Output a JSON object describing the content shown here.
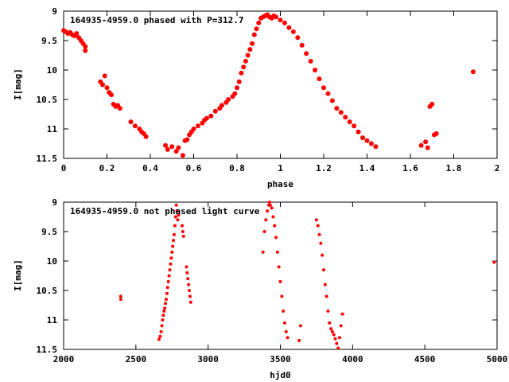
{
  "chart_data": [
    {
      "type": "scatter",
      "title": "164935-4959.0 phased with P=312.7",
      "xlabel": "phase",
      "ylabel": "I[mag]",
      "xlim": [
        0,
        2
      ],
      "ylim": [
        9,
        11.5
      ],
      "y_inverted": true,
      "grid": false,
      "xticks": [
        "0",
        "0.2",
        "0.4",
        "0.6",
        "0.8",
        "1",
        "1.2",
        "1.4",
        "1.6",
        "1.8",
        "2"
      ],
      "yticks": [
        "9",
        "9.5",
        "10",
        "10.5",
        "11",
        "11.5"
      ],
      "marker_color": "#ff0000",
      "points": [
        [
          0.0,
          9.33
        ],
        [
          0.01,
          9.35
        ],
        [
          0.02,
          9.38
        ],
        [
          0.03,
          9.36
        ],
        [
          0.04,
          9.4
        ],
        [
          0.05,
          9.42
        ],
        [
          0.06,
          9.38
        ],
        [
          0.07,
          9.45
        ],
        [
          0.08,
          9.5
        ],
        [
          0.09,
          9.55
        ],
        [
          0.1,
          9.6
        ],
        [
          0.1,
          9.67
        ],
        [
          0.17,
          10.2
        ],
        [
          0.18,
          10.25
        ],
        [
          0.19,
          10.1
        ],
        [
          0.2,
          10.3
        ],
        [
          0.21,
          10.38
        ],
        [
          0.22,
          10.42
        ],
        [
          0.23,
          10.58
        ],
        [
          0.24,
          10.62
        ],
        [
          0.25,
          10.6
        ],
        [
          0.26,
          10.65
        ],
        [
          0.31,
          10.88
        ],
        [
          0.33,
          10.95
        ],
        [
          0.35,
          11.0
        ],
        [
          0.36,
          11.05
        ],
        [
          0.37,
          11.08
        ],
        [
          0.38,
          11.13
        ],
        [
          0.47,
          11.28
        ],
        [
          0.48,
          11.35
        ],
        [
          0.5,
          11.3
        ],
        [
          0.52,
          11.38
        ],
        [
          0.53,
          11.32
        ],
        [
          0.55,
          11.45
        ],
        [
          0.56,
          11.2
        ],
        [
          0.57,
          11.18
        ],
        [
          0.58,
          11.1
        ],
        [
          0.59,
          11.05
        ],
        [
          0.6,
          11.0
        ],
        [
          0.62,
          10.95
        ],
        [
          0.64,
          10.9
        ],
        [
          0.65,
          10.85
        ],
        [
          0.66,
          10.82
        ],
        [
          0.68,
          10.78
        ],
        [
          0.7,
          10.7
        ],
        [
          0.72,
          10.65
        ],
        [
          0.73,
          10.6
        ],
        [
          0.75,
          10.55
        ],
        [
          0.76,
          10.5
        ],
        [
          0.78,
          10.45
        ],
        [
          0.79,
          10.4
        ],
        [
          0.8,
          10.3
        ],
        [
          0.81,
          10.2
        ],
        [
          0.82,
          10.05
        ],
        [
          0.83,
          9.95
        ],
        [
          0.84,
          9.85
        ],
        [
          0.85,
          9.75
        ],
        [
          0.86,
          9.65
        ],
        [
          0.87,
          9.55
        ],
        [
          0.88,
          9.4
        ],
        [
          0.89,
          9.3
        ],
        [
          0.9,
          9.2
        ],
        [
          0.91,
          9.12
        ],
        [
          0.92,
          9.1
        ],
        [
          0.93,
          9.08
        ],
        [
          0.94,
          9.06
        ],
        [
          0.95,
          9.1
        ],
        [
          0.96,
          9.12
        ],
        [
          0.97,
          9.08
        ],
        [
          0.98,
          9.1
        ],
        [
          1.0,
          9.15
        ],
        [
          1.02,
          9.2
        ],
        [
          1.04,
          9.28
        ],
        [
          1.06,
          9.35
        ],
        [
          1.08,
          9.45
        ],
        [
          1.1,
          9.58
        ],
        [
          1.12,
          9.72
        ],
        [
          1.14,
          9.85
        ],
        [
          1.16,
          10.0
        ],
        [
          1.18,
          10.15
        ],
        [
          1.2,
          10.3
        ],
        [
          1.22,
          10.4
        ],
        [
          1.24,
          10.52
        ],
        [
          1.26,
          10.65
        ],
        [
          1.28,
          10.72
        ],
        [
          1.3,
          10.8
        ],
        [
          1.32,
          10.88
        ],
        [
          1.34,
          10.95
        ],
        [
          1.36,
          11.05
        ],
        [
          1.38,
          11.15
        ],
        [
          1.4,
          11.2
        ],
        [
          1.42,
          11.25
        ],
        [
          1.44,
          11.3
        ],
        [
          1.65,
          11.28
        ],
        [
          1.67,
          11.22
        ],
        [
          1.68,
          11.32
        ],
        [
          1.69,
          10.62
        ],
        [
          1.7,
          10.58
        ],
        [
          1.71,
          11.1
        ],
        [
          1.72,
          11.08
        ],
        [
          1.89,
          10.03
        ]
      ]
    },
    {
      "type": "scatter",
      "title": "164935-4959.0 not phased light curve",
      "xlabel": "hjd0",
      "ylabel": "I[mag]",
      "xlim": [
        2000,
        5000
      ],
      "ylim": [
        9,
        11.5
      ],
      "y_inverted": true,
      "grid": false,
      "xticks": [
        "2000",
        "2500",
        "3000",
        "3500",
        "4000",
        "4500",
        "5000"
      ],
      "yticks": [
        "9",
        "9.5",
        "10",
        "10.5",
        "11",
        "11.5"
      ],
      "marker_color": "#ff0000",
      "points": [
        [
          2395,
          10.6
        ],
        [
          2396,
          10.65
        ],
        [
          2660,
          11.33
        ],
        [
          2668,
          11.28
        ],
        [
          2675,
          11.2
        ],
        [
          2680,
          11.1
        ],
        [
          2685,
          11.0
        ],
        [
          2690,
          10.92
        ],
        [
          2695,
          10.85
        ],
        [
          2700,
          10.8
        ],
        [
          2705,
          10.72
        ],
        [
          2710,
          10.65
        ],
        [
          2715,
          10.55
        ],
        [
          2720,
          10.45
        ],
        [
          2725,
          10.35
        ],
        [
          2730,
          10.25
        ],
        [
          2735,
          10.15
        ],
        [
          2740,
          10.05
        ],
        [
          2745,
          9.95
        ],
        [
          2750,
          9.85
        ],
        [
          2755,
          9.75
        ],
        [
          2760,
          9.65
        ],
        [
          2765,
          9.55
        ],
        [
          2770,
          9.4
        ],
        [
          2775,
          9.25
        ],
        [
          2780,
          9.05
        ],
        [
          2785,
          9.15
        ],
        [
          2790,
          9.3
        ],
        [
          2795,
          9.22
        ],
        [
          2820,
          9.4
        ],
        [
          2825,
          9.5
        ],
        [
          2830,
          9.58
        ],
        [
          2850,
          10.1
        ],
        [
          2855,
          10.2
        ],
        [
          2860,
          10.3
        ],
        [
          2865,
          10.4
        ],
        [
          2870,
          10.5
        ],
        [
          2875,
          10.6
        ],
        [
          2880,
          10.7
        ],
        [
          3380,
          9.85
        ],
        [
          3390,
          9.5
        ],
        [
          3400,
          9.3
        ],
        [
          3410,
          9.15
        ],
        [
          3420,
          9.05
        ],
        [
          3425,
          9.0
        ],
        [
          3430,
          9.05
        ],
        [
          3440,
          9.1
        ],
        [
          3450,
          9.25
        ],
        [
          3460,
          9.4
        ],
        [
          3470,
          9.6
        ],
        [
          3480,
          9.85
        ],
        [
          3490,
          10.1
        ],
        [
          3500,
          10.35
        ],
        [
          3510,
          10.6
        ],
        [
          3520,
          10.85
        ],
        [
          3530,
          11.05
        ],
        [
          3540,
          11.2
        ],
        [
          3550,
          11.3
        ],
        [
          3630,
          11.35
        ],
        [
          3640,
          11.1
        ],
        [
          3750,
          9.3
        ],
        [
          3760,
          9.4
        ],
        [
          3770,
          9.55
        ],
        [
          3780,
          9.7
        ],
        [
          3790,
          9.9
        ],
        [
          3800,
          10.15
        ],
        [
          3810,
          10.4
        ],
        [
          3820,
          10.6
        ],
        [
          3830,
          10.85
        ],
        [
          3840,
          11.05
        ],
        [
          3850,
          11.15
        ],
        [
          3860,
          11.2
        ],
        [
          3870,
          11.25
        ],
        [
          3880,
          11.32
        ],
        [
          3890,
          11.4
        ],
        [
          3900,
          11.48
        ],
        [
          3910,
          11.3
        ],
        [
          3920,
          11.1
        ],
        [
          3930,
          10.9
        ],
        [
          4980,
          10.02
        ]
      ]
    }
  ]
}
